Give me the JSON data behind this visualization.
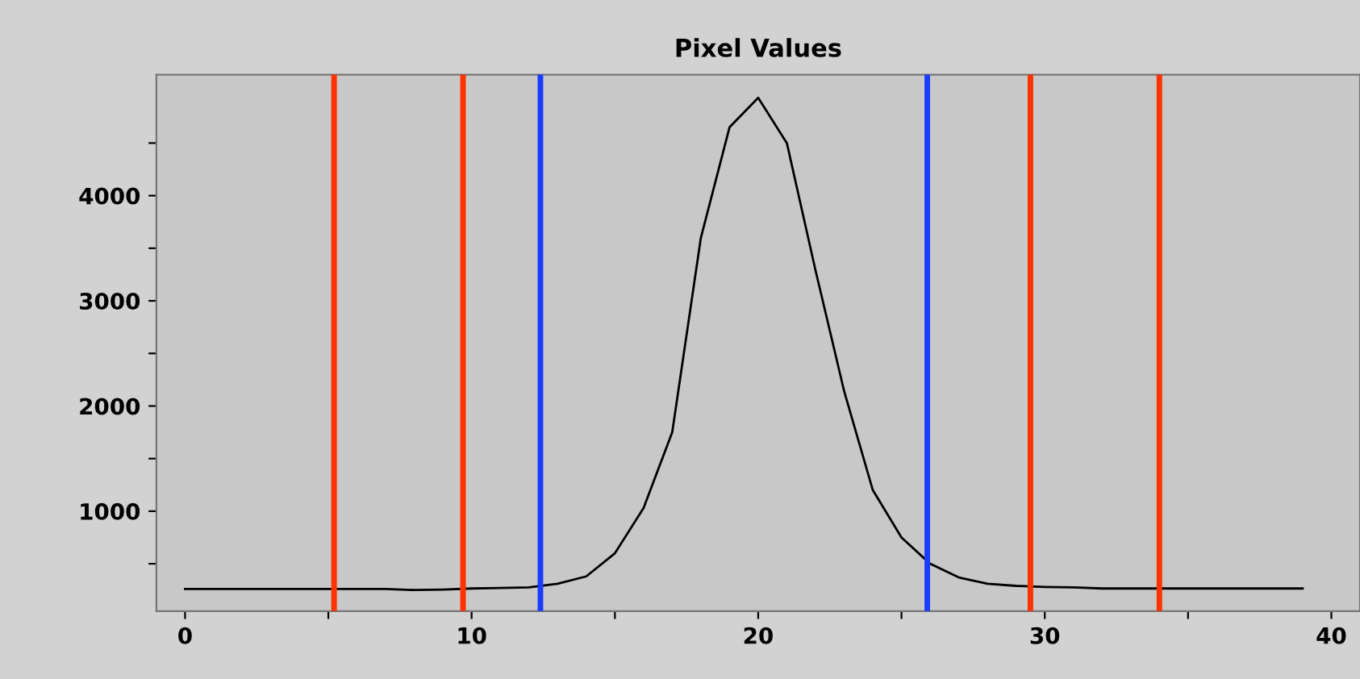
{
  "chart_data": {
    "type": "line",
    "title": "Pixel Values",
    "x": [
      0,
      1,
      2,
      3,
      4,
      5,
      6,
      7,
      8,
      9,
      10,
      11,
      12,
      13,
      14,
      15,
      16,
      17,
      18,
      19,
      20,
      21,
      22,
      23,
      24,
      25,
      26,
      27,
      28,
      29,
      30,
      31,
      32,
      33,
      34,
      35,
      36,
      37,
      38,
      39
    ],
    "series": [
      {
        "color": "#000000",
        "values": [
          260,
          260,
          260,
          260,
          260,
          260,
          260,
          260,
          250,
          255,
          265,
          270,
          275,
          310,
          380,
          600,
          1030,
          1750,
          3600,
          4650,
          4930,
          4500,
          3290,
          2140,
          1200,
          750,
          500,
          370,
          310,
          290,
          280,
          275,
          265,
          265,
          265,
          265,
          265,
          265,
          265,
          265
        ]
      }
    ],
    "xlim": [
      -1,
      41
    ],
    "ylim": [
      50,
      5150
    ],
    "xticks": [
      0,
      {
        "value": 5,
        "label": null
      },
      10,
      {
        "value": 15,
        "label": null
      },
      20,
      {
        "value": 25,
        "label": null
      },
      30,
      {
        "value": 35,
        "label": null
      },
      40
    ],
    "yticks": [
      {
        "value": 500,
        "label": null
      },
      1000,
      {
        "value": 1500,
        "label": null
      },
      2000,
      {
        "value": 2500,
        "label": null
      },
      3000,
      {
        "value": 3500,
        "label": null
      },
      4000,
      {
        "value": 4500,
        "label": null
      }
    ],
    "ref_lines": [
      {
        "axis": "x",
        "value": 5.2,
        "color": "#ff3300"
      },
      {
        "axis": "x",
        "value": 9.7,
        "color": "#ff3300"
      },
      {
        "axis": "x",
        "value": 12.4,
        "color": "#1a3cff"
      },
      {
        "axis": "x",
        "value": 25.9,
        "color": "#1a3cff"
      },
      {
        "axis": "x",
        "value": 29.5,
        "color": "#ff3300"
      },
      {
        "axis": "x",
        "value": 34.0,
        "color": "#ff3300"
      }
    ],
    "grid": false,
    "marker": "none",
    "line_style": "solid"
  }
}
